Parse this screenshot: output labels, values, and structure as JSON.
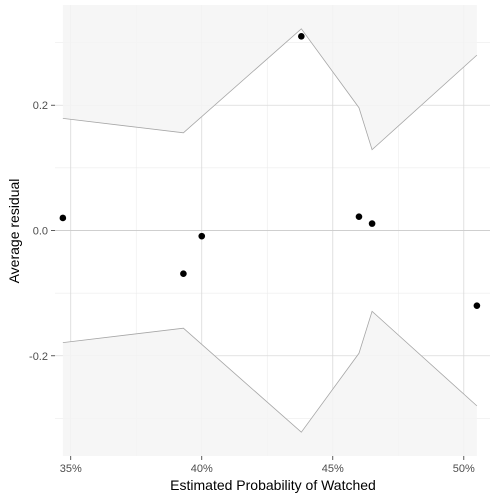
{
  "chart_data": {
    "type": "scatter",
    "xlabel": "Estimated Probability of Watched",
    "ylabel": "Average residual",
    "x_unit": "percent",
    "xlim": [
      34.4,
      51.0
    ],
    "ylim": [
      -0.36,
      0.36
    ],
    "x_ticks": [
      35,
      40,
      45,
      50
    ],
    "x_tick_labels": [
      "35%",
      "40%",
      "45%",
      "50%"
    ],
    "y_ticks": [
      -0.2,
      0.0,
      0.2
    ],
    "y_tick_labels": [
      "-0.2",
      "0.0",
      "0.2"
    ],
    "x_minor_ticks": [
      37.5,
      42.5,
      47.5
    ],
    "y_minor_ticks": [
      -0.3,
      -0.1,
      0.1,
      0.3
    ],
    "zero_line": 0,
    "grid": true,
    "points": [
      {
        "x": 34.7,
        "y": 0.02
      },
      {
        "x": 39.3,
        "y": -0.069
      },
      {
        "x": 40.0,
        "y": -0.009
      },
      {
        "x": 43.8,
        "y": 0.31
      },
      {
        "x": 46.0,
        "y": 0.022
      },
      {
        "x": 46.5,
        "y": 0.011
      },
      {
        "x": 50.5,
        "y": -0.12
      }
    ],
    "band": {
      "x": [
        34.7,
        39.3,
        43.8,
        46.0,
        46.5,
        50.5
      ],
      "upper": [
        0.179,
        0.156,
        0.322,
        0.196,
        0.129,
        0.28
      ],
      "lower": [
        -0.179,
        -0.156,
        -0.322,
        -0.196,
        -0.129,
        -0.28
      ]
    },
    "colors": {
      "panel": "#ebebeb",
      "grid_major": "#d9d9d9",
      "grid_minor": "#ececec",
      "band_fill": "#f4f4f4",
      "band_line": "#a6a6a6",
      "point": "#000000",
      "tick_text": "#4d4d4d"
    }
  }
}
